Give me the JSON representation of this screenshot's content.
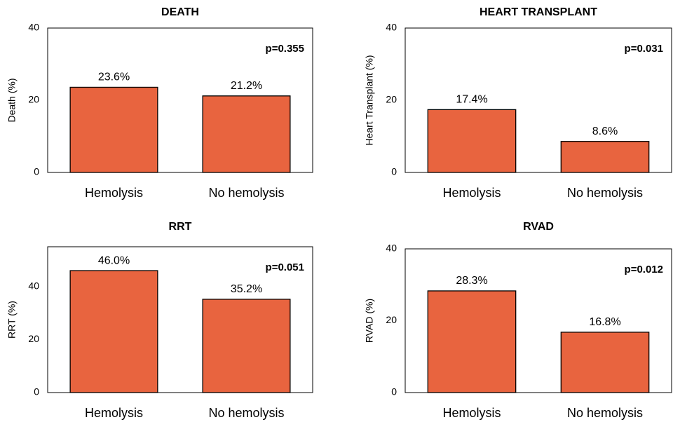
{
  "chart_data": [
    {
      "type": "bar",
      "title": "DEATH",
      "y_label": "Death (%)",
      "annotation": "p=0.355",
      "categories": [
        "Hemolysis",
        "No hemolysis"
      ],
      "values": [
        23.6,
        21.2
      ],
      "value_labels": [
        "23.6%",
        "21.2%"
      ],
      "color": "#e8643f",
      "ylim": [
        0,
        40
      ],
      "yticks": [
        0,
        20,
        40
      ]
    },
    {
      "type": "bar",
      "title": "HEART TRANSPLANT",
      "y_label": "Heart Transplant (%)",
      "annotation": "p=0.031",
      "categories": [
        "Hemolysis",
        "No hemolysis"
      ],
      "values": [
        17.4,
        8.6
      ],
      "value_labels": [
        "17.4%",
        "8.6%"
      ],
      "color": "#e8643f",
      "ylim": [
        0,
        40
      ],
      "yticks": [
        0,
        20,
        40
      ]
    },
    {
      "type": "bar",
      "title": "RRT",
      "y_label": "RRT (%)",
      "annotation": "p=0.051",
      "categories": [
        "Hemolysis",
        "No hemolysis"
      ],
      "values": [
        46.0,
        35.2
      ],
      "value_labels": [
        "46.0%",
        "35.2%"
      ],
      "color": "#e8643f",
      "ylim": [
        0,
        55
      ],
      "yticks": [
        0,
        20,
        40
      ]
    },
    {
      "type": "bar",
      "title": "RVAD",
      "y_label": "RVAD (%)",
      "annotation": "p=0.012",
      "categories": [
        "Hemolysis",
        "No hemolysis"
      ],
      "values": [
        28.3,
        16.8
      ],
      "value_labels": [
        "28.3%",
        "16.8%"
      ],
      "color": "#e8643f",
      "ylim": [
        0,
        40
      ],
      "yticks": [
        0,
        20,
        40
      ]
    }
  ]
}
